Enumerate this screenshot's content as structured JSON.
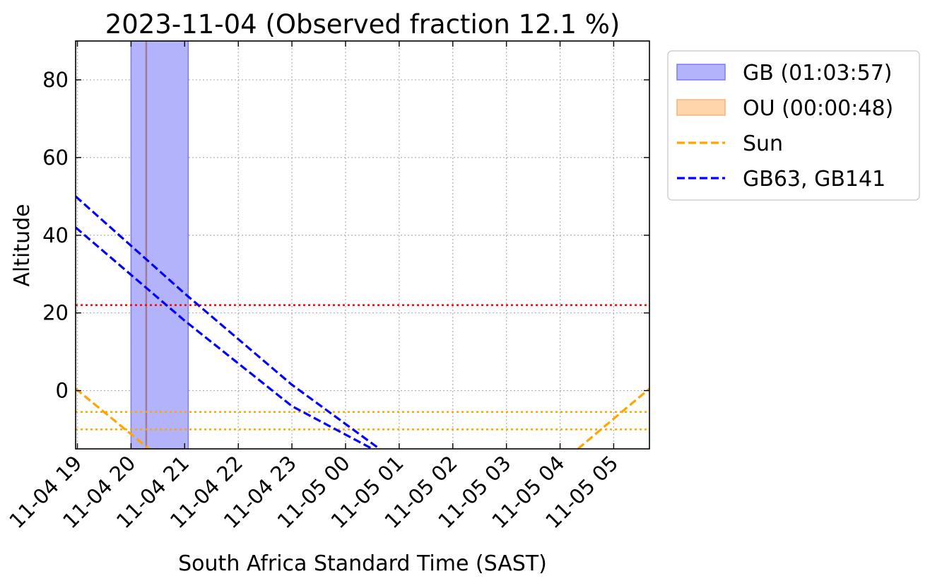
{
  "chart_data": {
    "type": "line",
    "title": "2023-11-04 (Observed fraction 12.1 %)",
    "xlabel": "South Africa Standard Time (SAST)",
    "ylabel": "Altitude",
    "xlim": [
      "2023-11-04 18:58",
      "2023-11-05 05:40"
    ],
    "ylim": [
      -15,
      90
    ],
    "grid": true,
    "legend_position": "outside-upper-right",
    "x_tick_labels": [
      "11-04 19",
      "11-04 20",
      "11-04 21",
      "11-04 22",
      "11-04 23",
      "11-05 00",
      "11-05 01",
      "11-05 02",
      "11-05 03",
      "11-05 04",
      "11-05 05"
    ],
    "x_tick_times": [
      "2023-11-04 19:00",
      "2023-11-04 20:00",
      "2023-11-04 21:00",
      "2023-11-04 22:00",
      "2023-11-04 23:00",
      "2023-11-05 00:00",
      "2023-11-05 01:00",
      "2023-11-05 02:00",
      "2023-11-05 03:00",
      "2023-11-05 04:00",
      "2023-11-05 05:00"
    ],
    "y_ticks": [
      0,
      20,
      40,
      60,
      80
    ],
    "shaded_spans": [
      {
        "label": "GB (01:03:57)",
        "start": "2023-11-04 20:00",
        "end": "2023-11-04 21:04",
        "color": "#7b7bf5",
        "fill": "#b3b3fb"
      }
    ],
    "vertical_lines": [
      {
        "time": "2023-11-04 20:17",
        "color": "#a07a9a"
      }
    ],
    "horizontal_lines": [
      {
        "y": 22,
        "color": "#ff0000",
        "style": "dotted"
      },
      {
        "y": -5.5,
        "color": "#ffa500",
        "style": "dotted"
      },
      {
        "y": -10,
        "color": "#ffa500",
        "style": "dotted"
      }
    ],
    "series": [
      {
        "name": "Sun",
        "color": "#ffa500",
        "style": "dashed",
        "segments": [
          {
            "x": [
              "2023-11-04 18:58",
              "2023-11-04 20:20"
            ],
            "y": [
              0.5,
              -15
            ]
          },
          {
            "x": [
              "2023-11-05 04:20",
              "2023-11-05 05:40"
            ],
            "y": [
              -15,
              0.5
            ]
          }
        ]
      },
      {
        "name": "GB63, GB141",
        "color": "#0000ff",
        "style": "dashed",
        "segments": [
          {
            "x": [
              "2023-11-04 18:58",
              "2023-11-04 21:00",
              "2023-11-04 23:00",
              "2023-11-05 00:38"
            ],
            "y": [
              50,
              25,
              1.5,
              -15
            ]
          },
          {
            "x": [
              "2023-11-04 18:58",
              "2023-11-04 21:00",
              "2023-11-04 23:00",
              "2023-11-05 00:30"
            ],
            "y": [
              42,
              18,
              -4,
              -15
            ]
          }
        ]
      }
    ],
    "legend": [
      {
        "label": "GB (01:03:57)",
        "kind": "patch",
        "fill": "#b3b3fb",
        "edge": "#7b7bf5"
      },
      {
        "label": "OU (00:00:48)",
        "kind": "patch",
        "fill": "#ffd5ab",
        "edge": "#f6b27a"
      },
      {
        "label": "Sun",
        "kind": "line",
        "color": "#ffa500"
      },
      {
        "label": "GB63, GB141",
        "kind": "line",
        "color": "#0000ff"
      }
    ]
  }
}
